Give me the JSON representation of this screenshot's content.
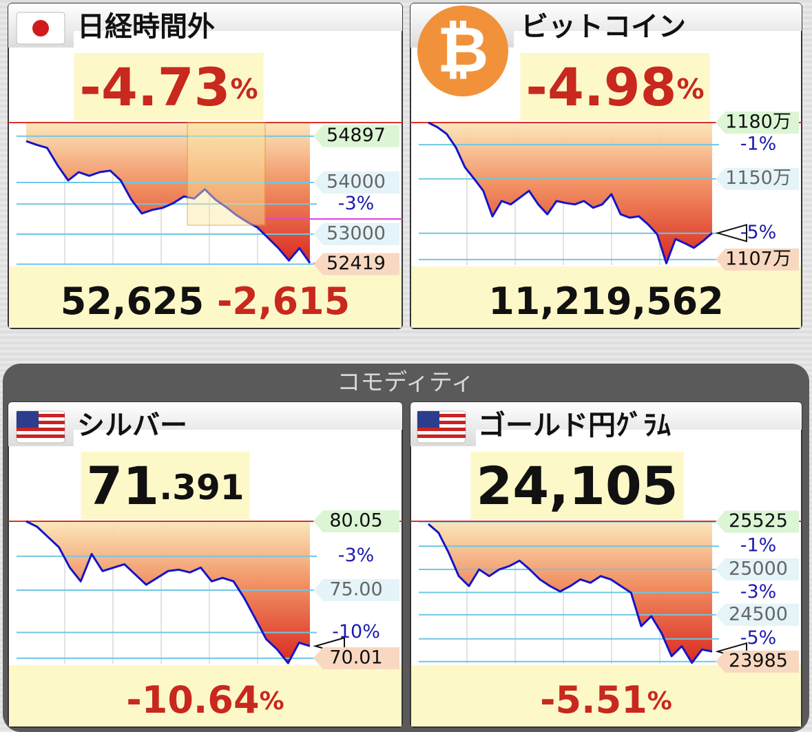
{
  "group_label": "コモディティ",
  "panels": [
    {
      "title": "日経時間外",
      "headline": [
        {
          "text": "-4.73",
          "color": "#c8281e"
        },
        {
          "text": "%",
          "color": "#c8281e"
        }
      ],
      "footer": [
        {
          "text": "52,625",
          "color": "#111111"
        },
        {
          "text": "-2,615",
          "color": "#c8281e"
        }
      ],
      "ylim": [
        52400,
        55160
      ],
      "levels": [
        54897,
        54000,
        {
          "value": 53583,
          "label": "-3%"
        },
        53000,
        52419
      ],
      "values": [
        54800,
        54730,
        54670,
        54330,
        54040,
        54200,
        54130,
        54200,
        54230,
        54040,
        53670,
        53400,
        53470,
        53510,
        53600,
        53730,
        53690,
        53870,
        53670,
        53530,
        53370,
        53240,
        53130,
        52930,
        52730,
        52490,
        52730,
        52440
      ]
    },
    {
      "title": "ビットコイン",
      "headline": [
        {
          "text": "-4.98",
          "color": "#c8281e"
        },
        {
          "text": "%",
          "color": "#c8281e"
        }
      ],
      "footer": [
        {
          "text": "11,219,562",
          "color": "#111111"
        }
      ],
      "ylim": [
        11040000,
        11800000
      ],
      "levels": [
        {
          "value": 11800000,
          "label": "1180万"
        },
        {
          "value": 11682000,
          "label": "-1%"
        },
        {
          "value": 11500000,
          "label": "1150万"
        },
        {
          "value": 11210000,
          "label": "-5%"
        },
        {
          "value": 11070000,
          "label": "1107万"
        }
      ],
      "values": [
        11800000,
        11775000,
        11739000,
        11668000,
        11561000,
        11500000,
        11436000,
        11300000,
        11382000,
        11364000,
        11400000,
        11436000,
        11364000,
        11311000,
        11382000,
        11371000,
        11364000,
        11382000,
        11346000,
        11364000,
        11418000,
        11311000,
        11293000,
        11300000,
        11257000,
        11204000,
        11050000,
        11179000,
        11157000,
        11132000,
        11168000,
        11211000
      ]
    },
    {
      "title": "シルバー",
      "headline": [
        {
          "text": "71",
          "color": "#111111"
        },
        {
          "text": ".391",
          "color": "#111111"
        }
      ],
      "footer": [
        {
          "text": "-10.64",
          "color": "#c8281e"
        },
        {
          "text": "%",
          "color": "#c8281e"
        }
      ],
      "ylim": [
        69.6,
        80.05
      ],
      "levels": [
        80.05,
        {
          "value": 77.49,
          "label": "-3%"
        },
        {
          "value": 75,
          "label": "75.00"
        },
        {
          "value": 71.9,
          "label": "-10%"
        },
        70.01
      ],
      "values": [
        80.05,
        79.65,
        78.9,
        78.15,
        76.65,
        75.65,
        77.65,
        76.4,
        76.65,
        76.9,
        76.15,
        75.4,
        75.9,
        76.4,
        76.5,
        76.3,
        76.65,
        75.65,
        75.9,
        75.65,
        74.4,
        72.9,
        71.4,
        70.65,
        69.65,
        71.15,
        70.9
      ]
    },
    {
      "title": "ゴールド円ｸﾞﾗﾑ",
      "headline": [
        {
          "text": "24,105",
          "color": "#111111"
        }
      ],
      "footer": [
        {
          "text": "-5.51",
          "color": "#c8281e"
        },
        {
          "text": "%",
          "color": "#c8281e"
        }
      ],
      "ylim": [
        23960,
        25530
      ],
      "levels": [
        25525,
        {
          "value": 25256,
          "label": "-1%"
        },
        25000,
        {
          "value": 24746,
          "label": "-3%"
        },
        24500,
        {
          "value": 24235,
          "label": "-5%"
        },
        23985
      ],
      "values": [
        25500,
        25404,
        25184,
        24926,
        24816,
        25000,
        24926,
        25000,
        25037,
        25096,
        25000,
        24890,
        24816,
        24757,
        24816,
        24890,
        24853,
        24926,
        24890,
        24816,
        24743,
        24375,
        24485,
        24301,
        24044,
        24154,
        23971,
        24118,
        24096
      ]
    }
  ]
}
